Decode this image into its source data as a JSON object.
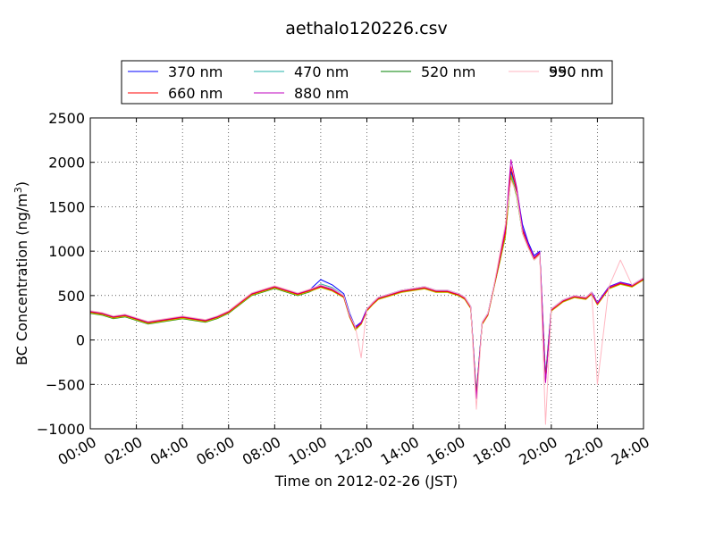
{
  "chart_data": {
    "type": "line",
    "title": "aethalo120226.csv",
    "xlabel": "Time on 2012-02-26 (JST)",
    "ylabel_main": "BC Concentration (ng/m",
    "ylabel_sup": "3",
    "ylabel_close": ")",
    "xlim": [
      0,
      24
    ],
    "ylim": [
      -1000,
      2500
    ],
    "grid": true,
    "legend_position": "top-center",
    "x_ticks": [
      {
        "value": 0,
        "label": "00:00"
      },
      {
        "value": 2,
        "label": "02:00"
      },
      {
        "value": 4,
        "label": "04:00"
      },
      {
        "value": 6,
        "label": "06:00"
      },
      {
        "value": 8,
        "label": "08:00"
      },
      {
        "value": 10,
        "label": "10:00"
      },
      {
        "value": 12,
        "label": "12:00"
      },
      {
        "value": 14,
        "label": "14:00"
      },
      {
        "value": 16,
        "label": "16:00"
      },
      {
        "value": 18,
        "label": "18:00"
      },
      {
        "value": 20,
        "label": "20:00"
      },
      {
        "value": 22,
        "label": "22:00"
      },
      {
        "value": 24,
        "label": "24:00"
      }
    ],
    "y_ticks": [
      {
        "value": 2500,
        "label": "2500"
      },
      {
        "value": 2000,
        "label": "2000"
      },
      {
        "value": 1500,
        "label": "1500"
      },
      {
        "value": 1000,
        "label": "1000"
      },
      {
        "value": 500,
        "label": "500"
      },
      {
        "value": 0,
        "label": "0"
      },
      {
        "value": -500,
        "label": "−500"
      },
      {
        "value": -1000,
        "label": "−1000"
      }
    ],
    "x": [
      0,
      0.5,
      1,
      1.5,
      2,
      2.5,
      3,
      3.5,
      4,
      4.5,
      5,
      5.5,
      6,
      6.5,
      7,
      7.5,
      8,
      8.5,
      9,
      9.5,
      10,
      10.5,
      11,
      11.25,
      11.5,
      11.75,
      12,
      12.25,
      12.5,
      13,
      13.5,
      14,
      14.5,
      15,
      15.5,
      16,
      16.25,
      16.5,
      16.75,
      17,
      17.25,
      17.5,
      17.75,
      18,
      18.25,
      18.5,
      18.75,
      19,
      19.25,
      19.5,
      19.75,
      20,
      20.25,
      20.5,
      21,
      21.5,
      21.75,
      22,
      22.5,
      23,
      23.5,
      24
    ],
    "series": [
      {
        "name": "370 nm",
        "color": "#0000ff",
        "values": [
          320,
          300,
          260,
          280,
          240,
          200,
          220,
          240,
          260,
          240,
          220,
          260,
          320,
          420,
          520,
          560,
          600,
          560,
          520,
          560,
          680,
          620,
          520,
          300,
          150,
          200,
          350,
          420,
          480,
          520,
          560,
          580,
          600,
          560,
          560,
          520,
          480,
          380,
          -600,
          200,
          300,
          600,
          900,
          1200,
          1900,
          1700,
          1300,
          1100,
          950,
          1000,
          -400,
          350,
          400,
          450,
          500,
          480,
          540,
          420,
          600,
          650,
          620,
          700
        ]
      },
      {
        "name": "470 nm",
        "color": "#20b2aa",
        "values": [
          310,
          290,
          250,
          270,
          230,
          190,
          210,
          230,
          250,
          230,
          210,
          250,
          310,
          410,
          510,
          550,
          590,
          550,
          510,
          550,
          630,
          590,
          500,
          280,
          140,
          190,
          340,
          410,
          470,
          510,
          550,
          570,
          590,
          550,
          550,
          510,
          470,
          370,
          -610,
          190,
          290,
          590,
          880,
          1180,
          1870,
          1660,
          1250,
          1070,
          920,
          980,
          -420,
          340,
          390,
          440,
          490,
          470,
          530,
          410,
          590,
          640,
          610,
          690
        ]
      },
      {
        "name": "520 nm",
        "color": "#008000",
        "values": [
          300,
          280,
          240,
          260,
          220,
          180,
          200,
          220,
          240,
          220,
          200,
          240,
          300,
          400,
          500,
          540,
          580,
          540,
          500,
          540,
          600,
          560,
          480,
          260,
          120,
          180,
          330,
          400,
          460,
          500,
          540,
          560,
          580,
          540,
          540,
          500,
          460,
          360,
          -620,
          180,
          280,
          580,
          860,
          1150,
          1840,
          1620,
          1200,
          1040,
          900,
          960,
          -440,
          330,
          380,
          430,
          480,
          460,
          520,
          400,
          580,
          630,
          600,
          680
        ]
      },
      {
        "name": "590 nm",
        "color": "#bfbf00",
        "values": [
          305,
          285,
          245,
          265,
          225,
          185,
          205,
          225,
          245,
          225,
          205,
          245,
          305,
          405,
          505,
          545,
          585,
          545,
          505,
          545,
          590,
          550,
          475,
          255,
          110,
          175,
          325,
          395,
          455,
          495,
          535,
          555,
          575,
          535,
          535,
          495,
          455,
          355,
          -630,
          175,
          275,
          575,
          860,
          1160,
          1850,
          1630,
          1210,
          1050,
          905,
          965,
          -450,
          325,
          375,
          425,
          475,
          455,
          515,
          395,
          575,
          625,
          595,
          675
        ]
      },
      {
        "name": "660 nm",
        "color": "#ff0000",
        "values": [
          315,
          295,
          255,
          275,
          235,
          195,
          215,
          235,
          255,
          235,
          215,
          255,
          315,
          415,
          515,
          555,
          595,
          555,
          515,
          555,
          600,
          560,
          485,
          265,
          130,
          185,
          335,
          405,
          465,
          505,
          545,
          565,
          585,
          545,
          545,
          505,
          465,
          365,
          -640,
          185,
          285,
          585,
          890,
          1200,
          1950,
          1680,
          1230,
          1060,
          915,
          975,
          -460,
          335,
          385,
          435,
          485,
          465,
          525,
          405,
          585,
          635,
          605,
          685
        ]
      },
      {
        "name": "880 nm",
        "color": "#bf00bf",
        "values": [
          325,
          305,
          265,
          285,
          245,
          205,
          225,
          245,
          265,
          245,
          225,
          265,
          325,
          425,
          525,
          565,
          605,
          565,
          525,
          565,
          610,
          570,
          495,
          275,
          140,
          195,
          345,
          415,
          475,
          515,
          555,
          575,
          595,
          555,
          555,
          515,
          475,
          375,
          -660,
          195,
          295,
          595,
          920,
          1250,
          2030,
          1720,
          1260,
          1080,
          930,
          990,
          -480,
          345,
          395,
          445,
          495,
          475,
          535,
          415,
          595,
          645,
          615,
          695
        ]
      },
      {
        "name": "950 nm",
        "color": "#ffb6c1",
        "values": [
          330,
          310,
          270,
          290,
          250,
          210,
          230,
          250,
          270,
          250,
          230,
          270,
          330,
          430,
          530,
          570,
          610,
          570,
          530,
          570,
          620,
          580,
          500,
          280,
          150,
          -200,
          350,
          420,
          480,
          520,
          560,
          580,
          600,
          560,
          560,
          520,
          480,
          380,
          -780,
          200,
          300,
          600,
          950,
          1300,
          1800,
          1650,
          1200,
          1040,
          900,
          960,
          -950,
          350,
          400,
          450,
          500,
          480,
          540,
          -500,
          600,
          900,
          620,
          700
        ]
      }
    ]
  }
}
